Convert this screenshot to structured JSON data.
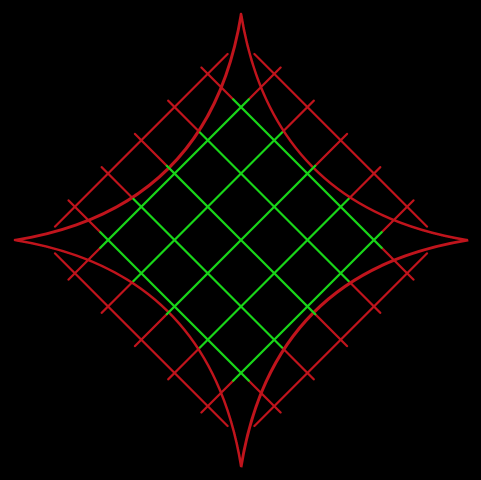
{
  "diagram": {
    "background_color": "#000000",
    "boundary_color": "#c0141c",
    "outer_line_color": "#c0141c",
    "inner_line_color": "#19d619",
    "grid_lines_per_direction": 7,
    "inner_lines_per_direction": 5,
    "boundary_shape": "concave-diamond",
    "line_directions": [
      "diagonal-down-right",
      "diagonal-up-right"
    ]
  }
}
